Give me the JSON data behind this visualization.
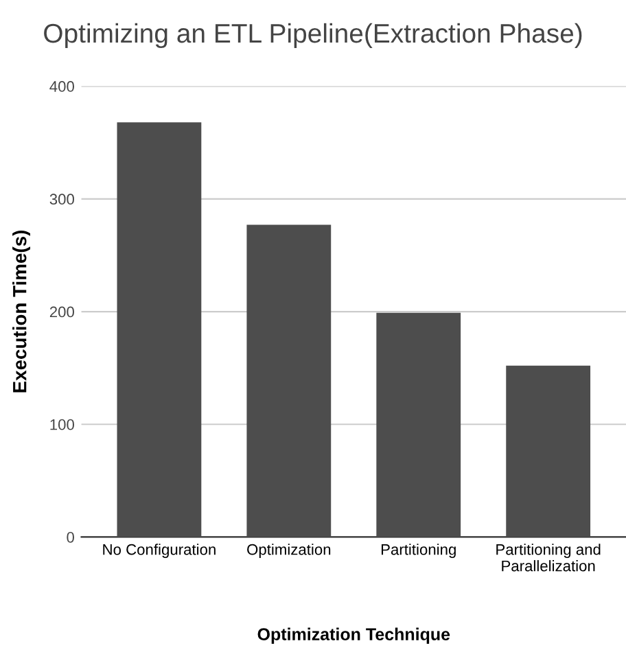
{
  "chart_data": {
    "type": "bar",
    "title": "Optimizing an ETL Pipeline(Extraction Phase)",
    "xlabel": "Optimization Technique",
    "ylabel": "Execution Time(s)",
    "categories": [
      "No Configuration",
      "Optimization",
      "Partitioning",
      "Partitioning and\nParallelization"
    ],
    "values": [
      368,
      277,
      199,
      152
    ],
    "color": "#4d4d4d",
    "ylim": [
      0,
      400
    ],
    "yticks": [
      0,
      100,
      200,
      300,
      400
    ],
    "grid": "y"
  }
}
